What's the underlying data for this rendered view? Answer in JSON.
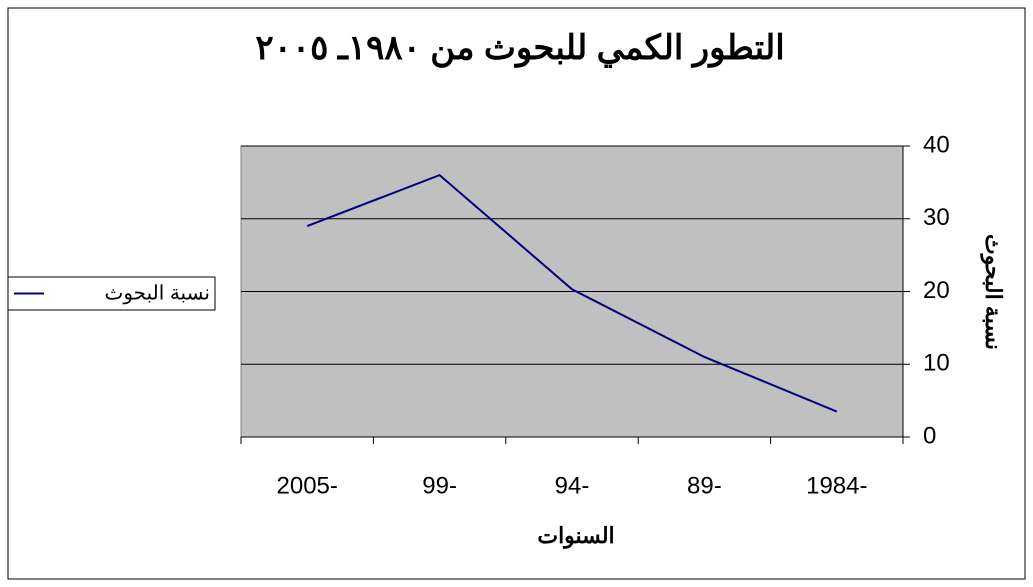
{
  "chart_data": {
    "type": "line",
    "title": "التطور الكمي للبحوث من ١٩٨٠ـ ٢٠٠٥",
    "x_label": "السنوات",
    "y_label": "نسبة البحوث",
    "categories": [
      "1984-",
      "89-",
      "94-",
      "99-",
      "2005-"
    ],
    "series": [
      {
        "name": "نسبة البحوث",
        "color": "#000080",
        "values": [
          3.5,
          11,
          20.3,
          36,
          29
        ]
      }
    ],
    "ylim": [
      0,
      40
    ],
    "yticks": [
      0,
      10,
      20,
      30,
      40
    ],
    "grid": true,
    "x_reversed": true,
    "y_axis_side": "right",
    "legend": "left",
    "plot_background": "#c0c0c0"
  }
}
